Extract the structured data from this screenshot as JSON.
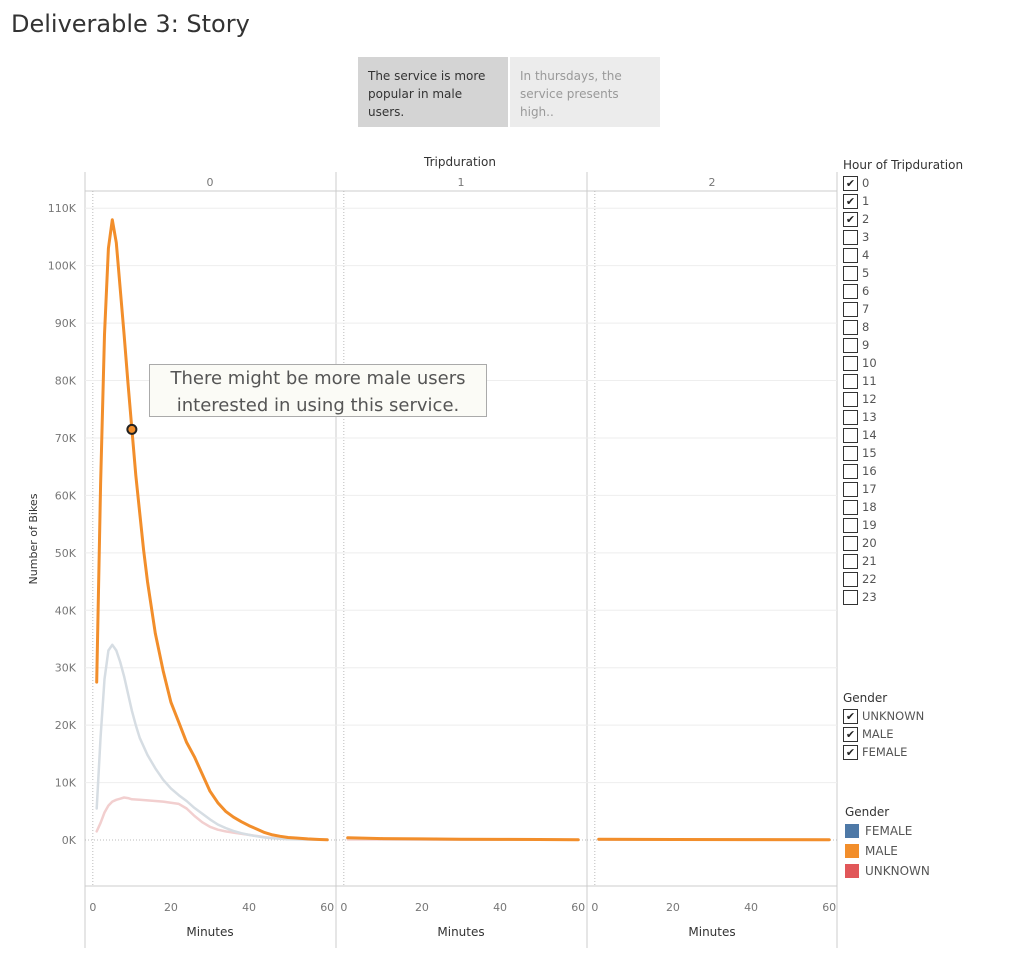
{
  "story": {
    "title": "Deliverable 3: Story",
    "tabs": [
      {
        "label": "The service is more popular in male users.",
        "active": true
      },
      {
        "label": "In thursdays, the service presents high..",
        "active": false
      }
    ]
  },
  "annotation": {
    "text": "There might be more male users interested in using this service."
  },
  "filters": {
    "hour": {
      "title": "Hour of Tripduration",
      "items": [
        {
          "label": "0",
          "checked": true
        },
        {
          "label": "1",
          "checked": true
        },
        {
          "label": "2",
          "checked": true
        },
        {
          "label": "3",
          "checked": false
        },
        {
          "label": "4",
          "checked": false
        },
        {
          "label": "5",
          "checked": false
        },
        {
          "label": "6",
          "checked": false
        },
        {
          "label": "7",
          "checked": false
        },
        {
          "label": "8",
          "checked": false
        },
        {
          "label": "9",
          "checked": false
        },
        {
          "label": "10",
          "checked": false
        },
        {
          "label": "11",
          "checked": false
        },
        {
          "label": "12",
          "checked": false
        },
        {
          "label": "13",
          "checked": false
        },
        {
          "label": "14",
          "checked": false
        },
        {
          "label": "15",
          "checked": false
        },
        {
          "label": "16",
          "checked": false
        },
        {
          "label": "17",
          "checked": false
        },
        {
          "label": "18",
          "checked": false
        },
        {
          "label": "19",
          "checked": false
        },
        {
          "label": "20",
          "checked": false
        },
        {
          "label": "21",
          "checked": false
        },
        {
          "label": "22",
          "checked": false
        },
        {
          "label": "23",
          "checked": false
        }
      ]
    },
    "gender": {
      "title": "Gender",
      "items": [
        {
          "label": "UNKNOWN",
          "checked": true
        },
        {
          "label": "MALE",
          "checked": true
        },
        {
          "label": "FEMALE",
          "checked": true
        }
      ]
    }
  },
  "color_legend": {
    "title": "Gender",
    "items": [
      {
        "label": "FEMALE",
        "color": "#4e79a7"
      },
      {
        "label": "MALE",
        "color": "#f28e2b"
      },
      {
        "label": "UNKNOWN",
        "color": "#e15759"
      }
    ]
  },
  "chart_data": {
    "type": "line",
    "title": "",
    "column_header": "Tripduration",
    "panels": [
      "0",
      "1",
      "2"
    ],
    "xlabel": "Minutes",
    "ylabel": "Number of Bikes",
    "xlim": [
      -2,
      62
    ],
    "ylim": [
      -8000,
      113000
    ],
    "x_ticks": [
      "0",
      "20",
      "40",
      "60"
    ],
    "y_ticks": [
      "0K",
      "10K",
      "20K",
      "30K",
      "40K",
      "50K",
      "60K",
      "70K",
      "80K",
      "90K",
      "100K",
      "110K"
    ],
    "y_tick_values": [
      0,
      10000,
      20000,
      30000,
      40000,
      50000,
      60000,
      70000,
      80000,
      90000,
      100000,
      110000
    ],
    "grid": true,
    "highlight": {
      "series": "MALE",
      "panel": "0",
      "x": 10,
      "y": 71500
    },
    "series": [
      {
        "name": "MALE",
        "color": "#f28e2b",
        "width": 3,
        "opacity": 1,
        "panels": {
          "0": [
            [
              1,
              27500
            ],
            [
              2,
              62000
            ],
            [
              3,
              88000
            ],
            [
              4,
              103000
            ],
            [
              5,
              108000
            ],
            [
              6,
              104000
            ],
            [
              7,
              96000
            ],
            [
              8,
              88000
            ],
            [
              9,
              79500
            ],
            [
              10,
              71500
            ],
            [
              11,
              63500
            ],
            [
              12,
              57000
            ],
            [
              13,
              50500
            ],
            [
              14,
              45000
            ],
            [
              16,
              36000
            ],
            [
              18,
              29500
            ],
            [
              20,
              24000
            ],
            [
              22,
              20500
            ],
            [
              24,
              17000
            ],
            [
              26,
              14500
            ],
            [
              28,
              11500
            ],
            [
              30,
              8500
            ],
            [
              32,
              6500
            ],
            [
              34,
              5000
            ],
            [
              36,
              4000
            ],
            [
              38,
              3200
            ],
            [
              40,
              2500
            ],
            [
              42,
              1900
            ],
            [
              44,
              1300
            ],
            [
              46,
              900
            ],
            [
              48,
              650
            ],
            [
              50,
              450
            ],
            [
              52,
              350
            ],
            [
              55,
              200
            ],
            [
              58,
              100
            ],
            [
              60,
              50
            ]
          ],
          "1": [
            [
              1,
              400
            ],
            [
              10,
              250
            ],
            [
              20,
              200
            ],
            [
              30,
              150
            ],
            [
              40,
              120
            ],
            [
              50,
              90
            ],
            [
              60,
              60
            ]
          ],
          "2": [
            [
              1,
              150
            ],
            [
              20,
              100
            ],
            [
              40,
              80
            ],
            [
              60,
              50
            ]
          ]
        }
      },
      {
        "name": "FEMALE",
        "color": "#d6dde3",
        "width": 2.5,
        "opacity": 1,
        "panels": {
          "0": [
            [
              1,
              5500
            ],
            [
              2,
              18000
            ],
            [
              3,
              28000
            ],
            [
              4,
              33000
            ],
            [
              5,
              34000
            ],
            [
              6,
              33000
            ],
            [
              7,
              31000
            ],
            [
              8,
              28500
            ],
            [
              9,
              25500
            ],
            [
              10,
              22500
            ],
            [
              11,
              20000
            ],
            [
              12,
              17800
            ],
            [
              14,
              14800
            ],
            [
              16,
              12500
            ],
            [
              18,
              10500
            ],
            [
              20,
              9000
            ],
            [
              22,
              7800
            ],
            [
              24,
              6800
            ],
            [
              26,
              5600
            ],
            [
              28,
              4600
            ],
            [
              30,
              3600
            ],
            [
              32,
              2700
            ],
            [
              34,
              2100
            ],
            [
              36,
              1600
            ],
            [
              38,
              1200
            ],
            [
              40,
              900
            ],
            [
              42,
              650
            ],
            [
              44,
              450
            ],
            [
              46,
              320
            ],
            [
              48,
              220
            ],
            [
              50,
              150
            ],
            [
              55,
              90
            ],
            [
              60,
              50
            ]
          ],
          "1": [
            [
              1,
              300
            ],
            [
              10,
              200
            ],
            [
              20,
              150
            ],
            [
              30,
              110
            ],
            [
              40,
              90
            ],
            [
              50,
              70
            ],
            [
              60,
              50
            ]
          ],
          "2": [
            [
              1,
              120
            ],
            [
              20,
              90
            ],
            [
              40,
              70
            ],
            [
              60,
              40
            ]
          ]
        }
      },
      {
        "name": "UNKNOWN",
        "color": "#f2cfcf",
        "width": 2.5,
        "opacity": 1,
        "panels": {
          "0": [
            [
              1,
              1500
            ],
            [
              2,
              3000
            ],
            [
              3,
              4800
            ],
            [
              4,
              6000
            ],
            [
              5,
              6700
            ],
            [
              6,
              7000
            ],
            [
              7,
              7200
            ],
            [
              8,
              7400
            ],
            [
              9,
              7300
            ],
            [
              10,
              7100
            ],
            [
              12,
              7000
            ],
            [
              14,
              6900
            ],
            [
              16,
              6800
            ],
            [
              18,
              6700
            ],
            [
              20,
              6500
            ],
            [
              22,
              6300
            ],
            [
              24,
              5500
            ],
            [
              26,
              4200
            ],
            [
              28,
              3100
            ],
            [
              30,
              2300
            ],
            [
              32,
              1800
            ],
            [
              34,
              1500
            ],
            [
              36,
              1300
            ],
            [
              38,
              1100
            ],
            [
              40,
              900
            ],
            [
              42,
              700
            ],
            [
              44,
              500
            ],
            [
              46,
              350
            ],
            [
              48,
              250
            ],
            [
              50,
              180
            ],
            [
              55,
              100
            ],
            [
              60,
              60
            ]
          ],
          "1": [
            [
              1,
              100
            ],
            [
              20,
              80
            ],
            [
              40,
              60
            ],
            [
              60,
              40
            ]
          ],
          "2": [
            [
              1,
              60
            ],
            [
              30,
              50
            ],
            [
              60,
              30
            ]
          ]
        }
      }
    ]
  }
}
